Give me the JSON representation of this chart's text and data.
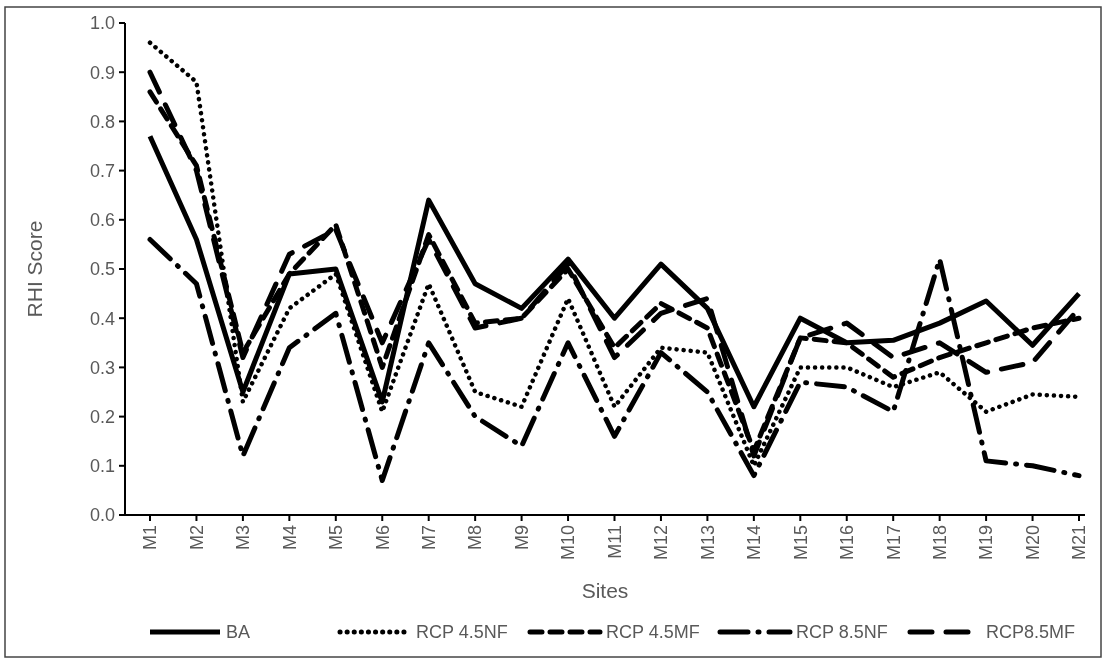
{
  "chart_data": {
    "type": "line",
    "xlabel": "Sites",
    "ylabel": "RHI Score",
    "categories": [
      "M1",
      "M2",
      "M3",
      "M4",
      "M5",
      "M6",
      "M7",
      "M8",
      "M9",
      "M10",
      "M11",
      "M12",
      "M13",
      "M14",
      "M15",
      "M16",
      "M17",
      "M18",
      "M19",
      "M20",
      "M21"
    ],
    "series": [
      {
        "name": "BA",
        "color": "#000000",
        "line_style": "solid",
        "values": [
          0.77,
          0.56,
          0.25,
          0.49,
          0.5,
          0.23,
          0.64,
          0.47,
          0.42,
          0.52,
          0.4,
          0.51,
          0.42,
          0.22,
          0.4,
          0.35,
          0.355,
          0.39,
          0.435,
          0.345,
          0.45
        ]
      },
      {
        "name": "RCP 4.5NF",
        "color": "#000000",
        "line_style": "dotted",
        "values": [
          0.96,
          0.88,
          0.23,
          0.42,
          0.49,
          0.21,
          0.47,
          0.25,
          0.22,
          0.44,
          0.22,
          0.34,
          0.33,
          0.1,
          0.3,
          0.3,
          0.26,
          0.29,
          0.21,
          0.245,
          0.24
        ]
      },
      {
        "name": "RCP 4.5MF",
        "color": "#000000",
        "line_style": "dashed",
        "values": [
          0.86,
          0.71,
          0.33,
          0.49,
          0.59,
          0.3,
          0.57,
          0.39,
          0.4,
          0.5,
          0.34,
          0.43,
          0.38,
          0.13,
          0.36,
          0.35,
          0.28,
          0.32,
          0.35,
          0.38,
          0.4
        ]
      },
      {
        "name": "RCP 8.5NF",
        "color": "#000000",
        "line_style": "dashed",
        "values": [
          0.56,
          0.47,
          0.12,
          0.34,
          0.41,
          0.07,
          0.35,
          0.2,
          0.14,
          0.35,
          0.16,
          0.33,
          0.25,
          0.08,
          0.27,
          0.26,
          0.21,
          0.52,
          0.11,
          0.1,
          0.08
        ]
      },
      {
        "name": "RCP8.5MF",
        "color": "#000000",
        "line_style": "dashed",
        "values": [
          0.9,
          0.7,
          0.32,
          0.53,
          0.58,
          0.35,
          0.56,
          0.38,
          0.4,
          0.51,
          0.32,
          0.41,
          0.44,
          0.12,
          0.36,
          0.39,
          0.32,
          0.35,
          0.29,
          0.31,
          0.42
        ]
      }
    ],
    "ylim": [
      0,
      1
    ],
    "yticks": [
      {
        "value": 0,
        "label": "0.0"
      },
      {
        "value": 0.1,
        "label": "0.1"
      },
      {
        "value": 0.2,
        "label": "0.2"
      },
      {
        "value": 0.3,
        "label": "0.3"
      },
      {
        "value": 0.4,
        "label": "0.4"
      },
      {
        "value": 0.5,
        "label": "0.5"
      },
      {
        "value": 0.6,
        "label": "0.6"
      },
      {
        "value": 0.7,
        "label": "0.7"
      },
      {
        "value": 0.8,
        "label": "0.8"
      },
      {
        "value": 0.9,
        "label": "0.9"
      },
      {
        "value": 1,
        "label": "1.0"
      }
    ],
    "grid": false,
    "legend": "bottom"
  }
}
